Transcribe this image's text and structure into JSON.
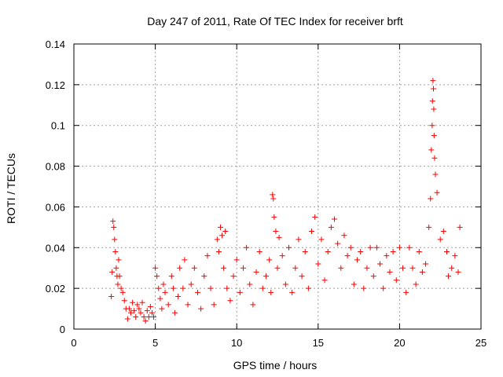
{
  "chart_data": {
    "type": "scatter",
    "title": "Day 247 of 2011, Rate Of TEC Index for receiver brft",
    "xlabel": "GPS time / hours",
    "ylabel": "ROTI / TECUs",
    "xlim": [
      0,
      25
    ],
    "ylim": [
      0,
      0.14
    ],
    "xticks": [
      0,
      5,
      10,
      15,
      20,
      25
    ],
    "yticks": [
      0,
      0.02,
      0.04,
      0.06,
      0.08,
      0.1,
      0.12,
      0.14
    ],
    "xtick_labels": [
      "0",
      "5",
      "10",
      "15",
      "20",
      "25"
    ],
    "ytick_labels": [
      "0",
      "0.02",
      "0.04",
      "0.06",
      "0.08",
      "0.1",
      "0.12",
      "0.14"
    ],
    "grid": true,
    "marker": "+",
    "color": "#ff0000",
    "series": [
      {
        "name": "ROTI",
        "points": [
          [
            2.3,
            0.016
          ],
          [
            2.35,
            0.028
          ],
          [
            2.4,
            0.053
          ],
          [
            2.45,
            0.05
          ],
          [
            2.5,
            0.044
          ],
          [
            2.55,
            0.038
          ],
          [
            2.6,
            0.03
          ],
          [
            2.65,
            0.026
          ],
          [
            2.7,
            0.022
          ],
          [
            2.75,
            0.034
          ],
          [
            2.8,
            0.026
          ],
          [
            2.9,
            0.02
          ],
          [
            3.0,
            0.018
          ],
          [
            3.1,
            0.014
          ],
          [
            3.2,
            0.01
          ],
          [
            3.3,
            0.005
          ],
          [
            3.4,
            0.01
          ],
          [
            3.5,
            0.008
          ],
          [
            3.6,
            0.013
          ],
          [
            3.7,
            0.009
          ],
          [
            3.8,
            0.006
          ],
          [
            3.9,
            0.012
          ],
          [
            4.0,
            0.01
          ],
          [
            4.1,
            0.008
          ],
          [
            4.2,
            0.013
          ],
          [
            4.3,
            0.006
          ],
          [
            4.4,
            0.004
          ],
          [
            4.5,
            0.009
          ],
          [
            4.6,
            0.006
          ],
          [
            4.7,
            0.011
          ],
          [
            4.8,
            0.008
          ],
          [
            4.9,
            0.006
          ],
          [
            5.0,
            0.03
          ],
          [
            5.1,
            0.026
          ],
          [
            5.2,
            0.02
          ],
          [
            5.3,
            0.015
          ],
          [
            5.4,
            0.01
          ],
          [
            5.5,
            0.022
          ],
          [
            5.6,
            0.018
          ],
          [
            5.8,
            0.012
          ],
          [
            6.0,
            0.026
          ],
          [
            6.1,
            0.02
          ],
          [
            6.2,
            0.008
          ],
          [
            6.4,
            0.016
          ],
          [
            6.5,
            0.03
          ],
          [
            6.7,
            0.02
          ],
          [
            6.8,
            0.034
          ],
          [
            7.0,
            0.012
          ],
          [
            7.2,
            0.022
          ],
          [
            7.4,
            0.03
          ],
          [
            7.6,
            0.018
          ],
          [
            7.8,
            0.01
          ],
          [
            8.0,
            0.026
          ],
          [
            8.2,
            0.036
          ],
          [
            8.4,
            0.02
          ],
          [
            8.6,
            0.012
          ],
          [
            8.8,
            0.044
          ],
          [
            8.9,
            0.038
          ],
          [
            9.0,
            0.05
          ],
          [
            9.1,
            0.046
          ],
          [
            9.2,
            0.03
          ],
          [
            9.3,
            0.048
          ],
          [
            9.4,
            0.02
          ],
          [
            9.6,
            0.014
          ],
          [
            9.8,
            0.026
          ],
          [
            10.0,
            0.034
          ],
          [
            10.2,
            0.018
          ],
          [
            10.4,
            0.03
          ],
          [
            10.6,
            0.04
          ],
          [
            10.8,
            0.022
          ],
          [
            11.0,
            0.012
          ],
          [
            11.2,
            0.028
          ],
          [
            11.4,
            0.038
          ],
          [
            11.6,
            0.02
          ],
          [
            11.8,
            0.026
          ],
          [
            12.0,
            0.034
          ],
          [
            12.1,
            0.018
          ],
          [
            12.2,
            0.066
          ],
          [
            12.25,
            0.064
          ],
          [
            12.3,
            0.055
          ],
          [
            12.4,
            0.048
          ],
          [
            12.5,
            0.03
          ],
          [
            12.6,
            0.045
          ],
          [
            12.8,
            0.036
          ],
          [
            13.0,
            0.022
          ],
          [
            13.2,
            0.04
          ],
          [
            13.4,
            0.018
          ],
          [
            13.6,
            0.03
          ],
          [
            13.8,
            0.044
          ],
          [
            14.0,
            0.026
          ],
          [
            14.2,
            0.038
          ],
          [
            14.4,
            0.02
          ],
          [
            14.6,
            0.048
          ],
          [
            14.8,
            0.055
          ],
          [
            15.0,
            0.032
          ],
          [
            15.2,
            0.044
          ],
          [
            15.4,
            0.024
          ],
          [
            15.6,
            0.038
          ],
          [
            15.8,
            0.05
          ],
          [
            16.0,
            0.054
          ],
          [
            16.2,
            0.042
          ],
          [
            16.4,
            0.03
          ],
          [
            16.6,
            0.046
          ],
          [
            16.8,
            0.036
          ],
          [
            17.0,
            0.04
          ],
          [
            17.2,
            0.022
          ],
          [
            17.4,
            0.034
          ],
          [
            17.6,
            0.038
          ],
          [
            17.8,
            0.02
          ],
          [
            18.0,
            0.03
          ],
          [
            18.2,
            0.04
          ],
          [
            18.4,
            0.026
          ],
          [
            18.6,
            0.04
          ],
          [
            18.8,
            0.032
          ],
          [
            19.0,
            0.02
          ],
          [
            19.2,
            0.036
          ],
          [
            19.4,
            0.028
          ],
          [
            19.6,
            0.038
          ],
          [
            19.8,
            0.024
          ],
          [
            20.0,
            0.04
          ],
          [
            20.2,
            0.03
          ],
          [
            20.4,
            0.018
          ],
          [
            20.6,
            0.04
          ],
          [
            20.8,
            0.03
          ],
          [
            21.0,
            0.022
          ],
          [
            21.2,
            0.038
          ],
          [
            21.4,
            0.028
          ],
          [
            21.6,
            0.032
          ],
          [
            21.8,
            0.05
          ],
          [
            21.9,
            0.064
          ],
          [
            21.95,
            0.088
          ],
          [
            22.0,
            0.1
          ],
          [
            22.02,
            0.112
          ],
          [
            22.05,
            0.122
          ],
          [
            22.08,
            0.118
          ],
          [
            22.1,
            0.108
          ],
          [
            22.12,
            0.095
          ],
          [
            22.15,
            0.084
          ],
          [
            22.2,
            0.076
          ],
          [
            22.3,
            0.067
          ],
          [
            22.5,
            0.044
          ],
          [
            22.7,
            0.048
          ],
          [
            22.9,
            0.038
          ],
          [
            23.0,
            0.026
          ],
          [
            23.2,
            0.03
          ],
          [
            23.4,
            0.036
          ],
          [
            23.6,
            0.028
          ],
          [
            23.7,
            0.05
          ]
        ]
      }
    ]
  }
}
